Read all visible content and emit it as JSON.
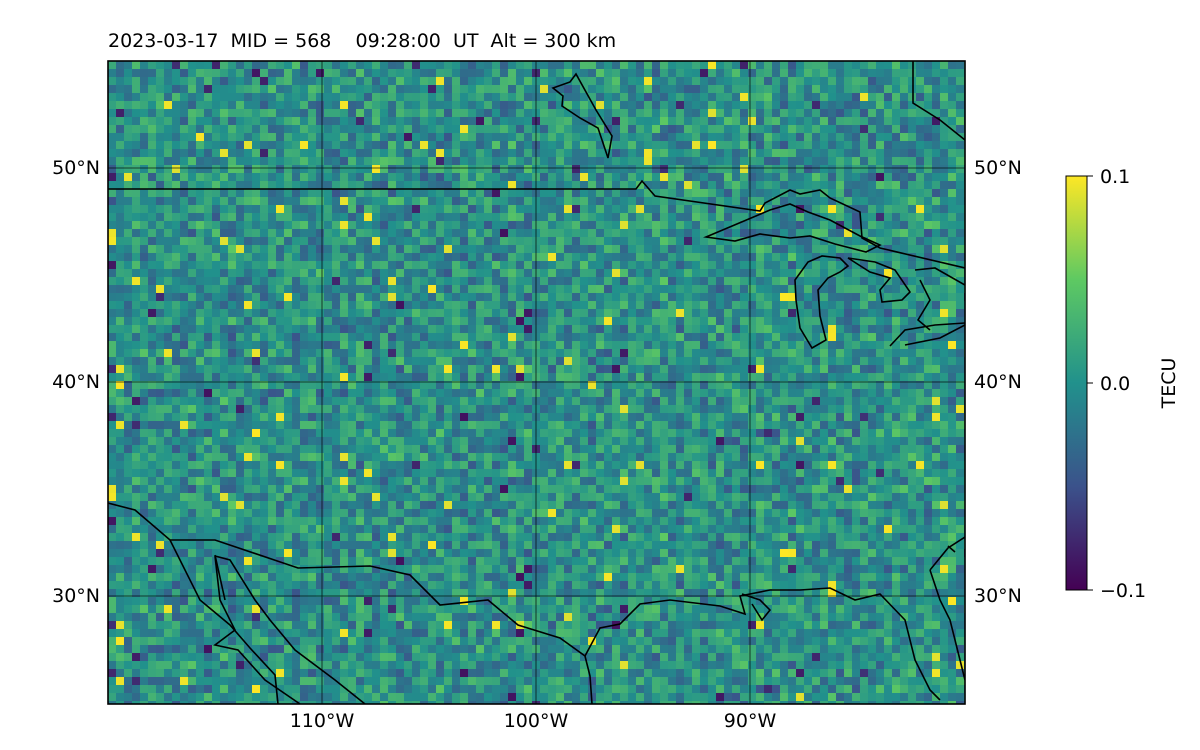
{
  "title": "2023-03-17  MID = 568    09:28:00  UT  Alt = 300 km",
  "map": {
    "lat_labels": [
      "50°N",
      "40°N",
      "30°N"
    ],
    "lon_labels": [
      "110°W",
      "100°W",
      "90°W"
    ],
    "lat_values": [
      50,
      40,
      30
    ],
    "lon_values": [
      -110,
      -100,
      -90
    ],
    "extent": {
      "lon_min": -120,
      "lon_max": -80,
      "lat_min": 25,
      "lat_max": 55
    }
  },
  "colorbar": {
    "label": "TECU",
    "tick_labels": [
      "0.1",
      "0.0",
      "−0.1"
    ],
    "tick_values": [
      0.1,
      0.0,
      -0.1
    ],
    "colormap": "viridis",
    "colors": [
      "#440154",
      "#3b528b",
      "#21918c",
      "#5ec962",
      "#fde725"
    ]
  },
  "colors": {
    "background_mid": "#2a8c8a",
    "coastline": "#000000",
    "grid": "#000000"
  }
}
